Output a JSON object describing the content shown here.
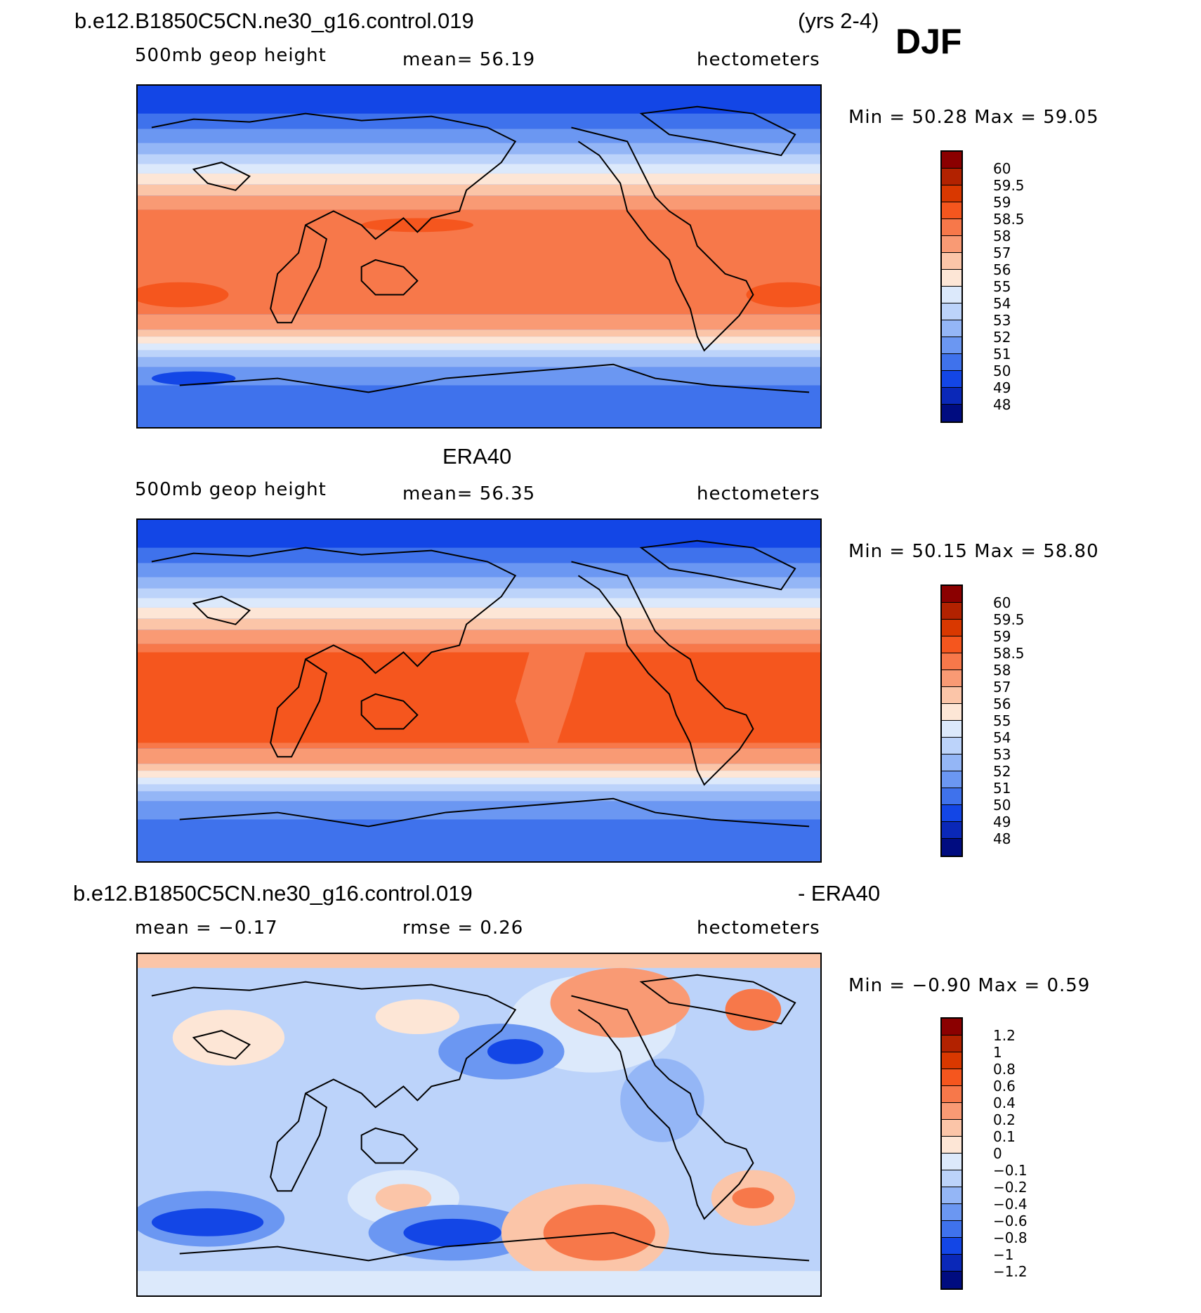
{
  "header": {
    "case_title": "b.e12.B1850C5CN.ne30_g16.control.019",
    "years": "(yrs 2-4)",
    "season": "DJF"
  },
  "panels": [
    {
      "id": "model",
      "title": "",
      "left_label": "500mb geop height",
      "center_label": "mean=   56.19",
      "units": "hectometers",
      "minmax": "Min =    50.28  Max =    59.05",
      "colorbar_levels": [
        "60",
        "59.5",
        "59",
        "58.5",
        "58",
        "57",
        "56",
        "55",
        "54",
        "53",
        "52",
        "51",
        "50",
        "49",
        "48"
      ],
      "colorbar_colors": [
        "#8b0000",
        "#b22200",
        "#d93800",
        "#f5561e",
        "#f7784a",
        "#f99a74",
        "#fbc5a8",
        "#fde6d6",
        "#dce9fb",
        "#bcd3fa",
        "#94b6f6",
        "#6b97f2",
        "#3f72ec",
        "#1346e6",
        "#0a28b8",
        "#000c80"
      ]
    },
    {
      "id": "obs",
      "title": "ERA40",
      "left_label": "500mb geop height",
      "center_label": "mean=   56.35",
      "units": "hectometers",
      "minmax": "Min =    50.15  Max =    58.80",
      "colorbar_levels": [
        "60",
        "59.5",
        "59",
        "58.5",
        "58",
        "57",
        "56",
        "55",
        "54",
        "53",
        "52",
        "51",
        "50",
        "49",
        "48"
      ],
      "colorbar_colors": [
        "#8b0000",
        "#b22200",
        "#d93800",
        "#f5561e",
        "#f7784a",
        "#f99a74",
        "#fbc5a8",
        "#fde6d6",
        "#dce9fb",
        "#bcd3fa",
        "#94b6f6",
        "#6b97f2",
        "#3f72ec",
        "#1346e6",
        "#0a28b8",
        "#000c80"
      ]
    },
    {
      "id": "diff",
      "title_left": "b.e12.B1850C5CN.ne30_g16.control.019",
      "title_right": "- ERA40",
      "left_label": "mean =   −0.17",
      "center_label": "rmse =     0.26",
      "units": "hectometers",
      "minmax": "Min =   −0.90  Max =     0.59",
      "colorbar_levels": [
        "1.2",
        "1",
        "0.8",
        "0.6",
        "0.4",
        "0.2",
        "0.1",
        "0",
        "−0.1",
        "−0.2",
        "−0.4",
        "−0.6",
        "−0.8",
        "−1",
        "−1.2"
      ],
      "colorbar_colors": [
        "#8b0000",
        "#b22200",
        "#d93800",
        "#f5561e",
        "#f7784a",
        "#f99a74",
        "#fbc5a8",
        "#fde6d6",
        "#dce9fb",
        "#bcd3fa",
        "#94b6f6",
        "#6b97f2",
        "#3f72ec",
        "#1346e6",
        "#0a28b8",
        "#000c80"
      ]
    }
  ]
}
